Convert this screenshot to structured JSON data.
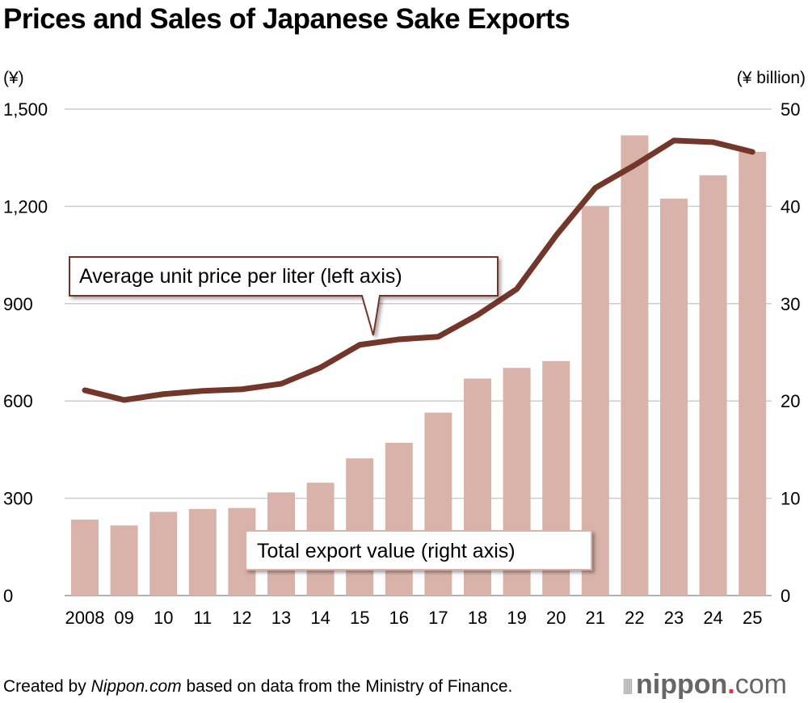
{
  "chart_data": {
    "type": "bar+line",
    "title": "Prices and Sales of Japanese Sake Exports",
    "left_axis_unit": "(¥)",
    "right_axis_unit": "(¥ billion)",
    "categories": [
      "2008",
      "09",
      "10",
      "11",
      "12",
      "13",
      "14",
      "15",
      "16",
      "17",
      "18",
      "19",
      "20",
      "21",
      "22",
      "23",
      "24",
      "25"
    ],
    "left_ylim": [
      0,
      1500
    ],
    "left_ticks": [
      "0",
      "300",
      "600",
      "900",
      "1,200",
      "1,500"
    ],
    "right_ylim": [
      0,
      50
    ],
    "right_ticks": [
      "0",
      "10",
      "20",
      "30",
      "40",
      "50"
    ],
    "grid": true,
    "series": [
      {
        "name": "Total export value (right axis)",
        "type": "bar",
        "axis": "right",
        "values": [
          7.8,
          7.2,
          8.6,
          8.9,
          9.0,
          10.6,
          11.6,
          14.1,
          15.7,
          18.8,
          22.3,
          23.4,
          24.1,
          40.0,
          47.3,
          40.8,
          43.2,
          45.6
        ],
        "color": "#d9b3aa"
      },
      {
        "name": "Average unit price per liter (left axis)",
        "type": "line",
        "axis": "left",
        "values": [
          633,
          603,
          621,
          631,
          636,
          653,
          703,
          773,
          790,
          798,
          865,
          945,
          1110,
          1257,
          1327,
          1403,
          1398,
          1368
        ],
        "color": "#73362a"
      }
    ]
  },
  "footer": {
    "prefix": "Created by ",
    "source_name": "Nippon.com",
    "suffix": " based on data from the Ministry of Finance."
  },
  "logo": {
    "text": "nippon",
    "dot": ".",
    "com": "com",
    "dot_color": "#e8333a"
  }
}
